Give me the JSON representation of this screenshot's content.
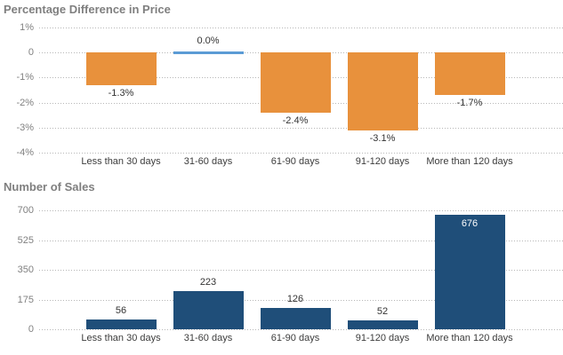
{
  "page": {
    "background_color": "#ffffff"
  },
  "chart_data": [
    {
      "type": "bar",
      "title": "Percentage Difference in Price",
      "categories": [
        "Less than 30 days",
        "31-60 days",
        "61-90 days",
        "91-120 days",
        "More than 120 days"
      ],
      "values": [
        -1.3,
        0.0,
        -2.4,
        -3.1,
        -1.7
      ],
      "point_labels": [
        "-1.3%",
        "0.0%",
        "-2.4%",
        "-3.1%",
        "-1.7%"
      ],
      "y_ticks": [
        {
          "value": 1,
          "label": "1%"
        },
        {
          "value": 0,
          "label": "0"
        },
        {
          "value": -1,
          "label": "-1%"
        },
        {
          "value": -2,
          "label": "-2%"
        },
        {
          "value": -3,
          "label": "-3%"
        },
        {
          "value": -4,
          "label": "-4%"
        }
      ],
      "ylim": [
        1,
        -4
      ],
      "xlabel": "",
      "ylabel": "",
      "grid": true,
      "legend": "none",
      "bar_color": "#e8913c",
      "zero_bar_color": "#5b9bd5",
      "label_color": "#333333",
      "label_inside": [
        false,
        false,
        false,
        false,
        false
      ]
    },
    {
      "type": "bar",
      "title": "Number of Sales",
      "categories": [
        "Less than 30 days",
        "31-60 days",
        "61-90 days",
        "91-120 days",
        "More than 120 days"
      ],
      "values": [
        56,
        223,
        126,
        52,
        676
      ],
      "point_labels": [
        "56",
        "223",
        "126",
        "52",
        "676"
      ],
      "y_ticks": [
        {
          "value": 700,
          "label": "700"
        },
        {
          "value": 525,
          "label": "525"
        },
        {
          "value": 350,
          "label": "350"
        },
        {
          "value": 175,
          "label": "175"
        },
        {
          "value": 0,
          "label": "0"
        }
      ],
      "ylim": [
        700,
        0
      ],
      "xlabel": "",
      "ylabel": "",
      "grid": true,
      "legend": "none",
      "bar_color": "#1f4e79",
      "zero_bar_color": "#1f4e79",
      "label_color": "#333333",
      "inside_label_color": "#ffffff",
      "label_inside": [
        false,
        false,
        false,
        false,
        true
      ]
    }
  ]
}
